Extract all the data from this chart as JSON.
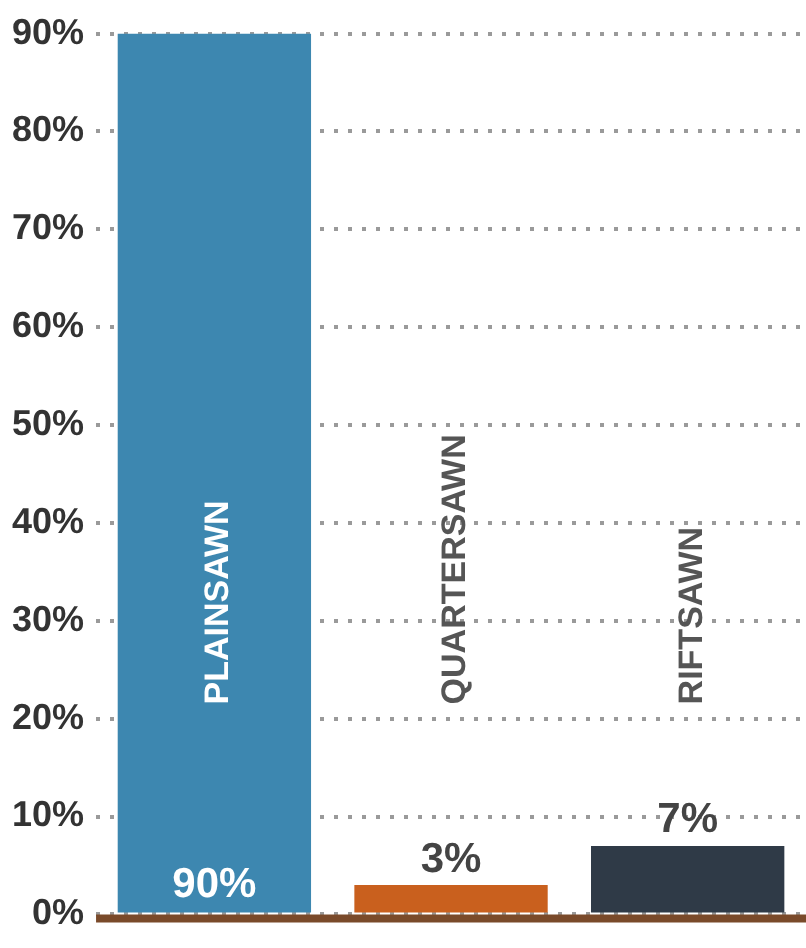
{
  "chart_data": {
    "type": "bar",
    "categories": [
      "PLAINSAWN",
      "QUARTERSAWN",
      "RIFTSAWN"
    ],
    "values": [
      90,
      3,
      7
    ],
    "colors": [
      "#3d87b0",
      "#c9601e",
      "#2f3a47"
    ],
    "value_labels": [
      "90%",
      "3%",
      "7%"
    ],
    "ylim": [
      0,
      90
    ],
    "yticks": [
      {
        "value": 0,
        "label": "0%"
      },
      {
        "value": 10,
        "label": "10%"
      },
      {
        "value": 20,
        "label": "20%"
      },
      {
        "value": 30,
        "label": "30%"
      },
      {
        "value": 40,
        "label": "40%"
      },
      {
        "value": 50,
        "label": "50%"
      },
      {
        "value": 60,
        "label": "60%"
      },
      {
        "value": 70,
        "label": "70%"
      },
      {
        "value": 80,
        "label": "80%"
      },
      {
        "value": 90,
        "label": "90%"
      }
    ],
    "grid": "y"
  }
}
